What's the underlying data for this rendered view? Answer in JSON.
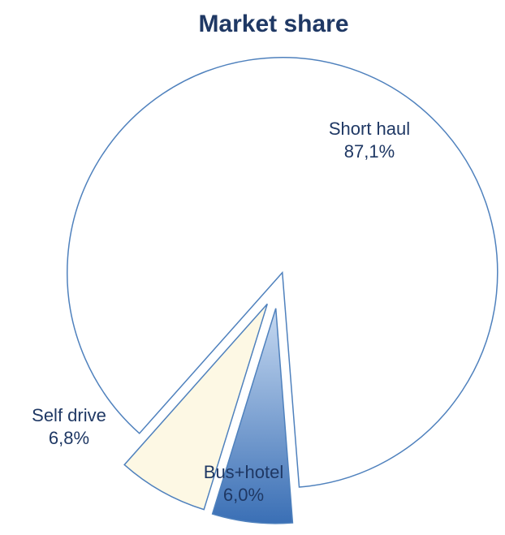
{
  "chart_data": {
    "type": "pie",
    "title": "Market share",
    "categories": [
      "Short haul",
      "Bus+hotel",
      "Self drive"
    ],
    "values": [
      87.1,
      6.0,
      6.8
    ],
    "value_labels": [
      "87,1%",
      "6,0%",
      "6,8%"
    ],
    "colors": [
      "#ffffff",
      "#4f81bd",
      "#fdf8e4"
    ]
  }
}
